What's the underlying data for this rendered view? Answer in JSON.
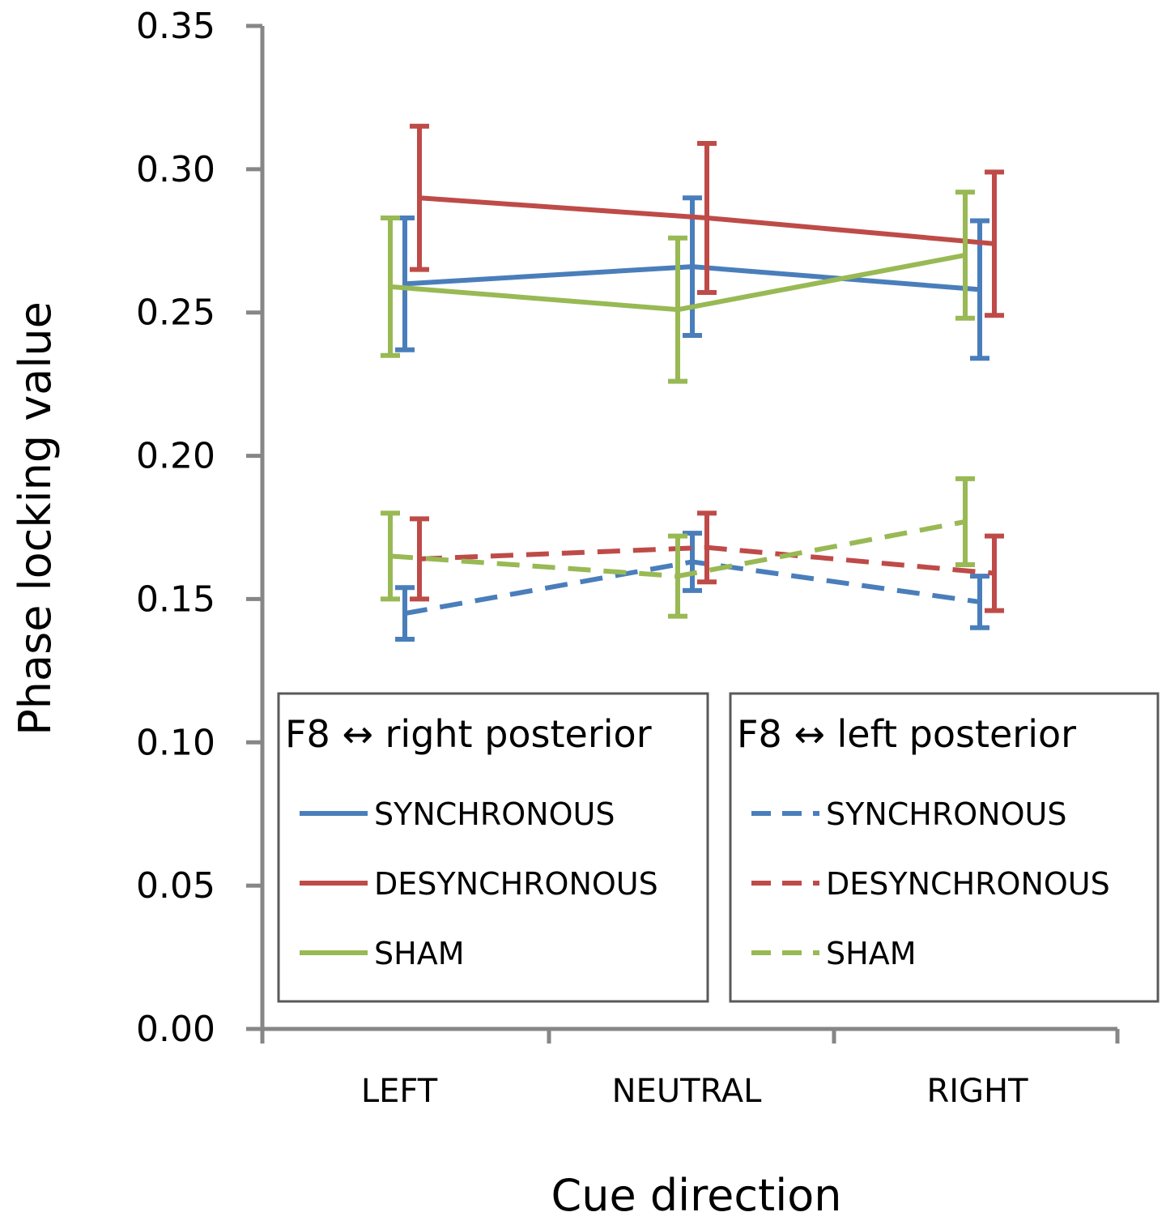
{
  "chart_data": {
    "type": "line",
    "xlabel": "Cue direction",
    "ylabel": "Phase locking value",
    "categories": [
      "LEFT",
      "NEUTRAL",
      "RIGHT"
    ],
    "ylim": [
      0,
      0.35
    ],
    "yticks": [
      "0.00",
      "0.05",
      "0.10",
      "0.15",
      "0.20",
      "0.25",
      "0.30",
      "0.35"
    ],
    "ytick_values": [
      0,
      0.05,
      0.1,
      0.15,
      0.2,
      0.25,
      0.3,
      0.35
    ],
    "grid": false,
    "colors": {
      "synchronous": "#4a7ebb",
      "desynchronous": "#be4b48",
      "sham": "#98b954",
      "axis": "#868686",
      "legend_border": "#595959"
    },
    "legend_groups": [
      {
        "title": "F8 ↔ right posterior",
        "style": "solid",
        "entries": [
          "SYNCHRONOUS",
          "DESYNCHRONOUS",
          "SHAM"
        ]
      },
      {
        "title": "F8 ↔ left posterior",
        "style": "dashed",
        "entries": [
          "SYNCHRONOUS",
          "DESYNCHRONOUS",
          "SHAM"
        ]
      }
    ],
    "series": [
      {
        "name": "SYNCHRONOUS",
        "group": "F8 ↔ right posterior",
        "style": "solid",
        "color_key": "synchronous",
        "values": [
          0.26,
          0.266,
          0.258
        ],
        "err_low": [
          0.237,
          0.242,
          0.234
        ],
        "err_high": [
          0.283,
          0.29,
          0.282
        ]
      },
      {
        "name": "DESYNCHRONOUS",
        "group": "F8 ↔ right posterior",
        "style": "solid",
        "color_key": "desynchronous",
        "values": [
          0.29,
          0.283,
          0.274
        ],
        "err_low": [
          0.265,
          0.257,
          0.249
        ],
        "err_high": [
          0.315,
          0.309,
          0.299
        ]
      },
      {
        "name": "SHAM",
        "group": "F8 ↔ right posterior",
        "style": "solid",
        "color_key": "sham",
        "values": [
          0.259,
          0.251,
          0.27
        ],
        "err_low": [
          0.235,
          0.226,
          0.248
        ],
        "err_high": [
          0.283,
          0.276,
          0.292
        ]
      },
      {
        "name": "SYNCHRONOUS",
        "group": "F8 ↔ left posterior",
        "style": "dashed",
        "color_key": "synchronous",
        "values": [
          0.145,
          0.163,
          0.149
        ],
        "err_low": [
          0.136,
          0.153,
          0.14
        ],
        "err_high": [
          0.154,
          0.173,
          0.158
        ]
      },
      {
        "name": "DESYNCHRONOUS",
        "group": "F8 ↔ left posterior",
        "style": "dashed",
        "color_key": "desynchronous",
        "values": [
          0.164,
          0.168,
          0.159
        ],
        "err_low": [
          0.15,
          0.156,
          0.146
        ],
        "err_high": [
          0.178,
          0.18,
          0.172
        ]
      },
      {
        "name": "SHAM",
        "group": "F8 ↔ left posterior",
        "style": "dashed",
        "color_key": "sham",
        "values": [
          0.165,
          0.158,
          0.177
        ],
        "err_low": [
          0.15,
          0.144,
          0.162
        ],
        "err_high": [
          0.18,
          0.172,
          0.192
        ]
      }
    ]
  }
}
